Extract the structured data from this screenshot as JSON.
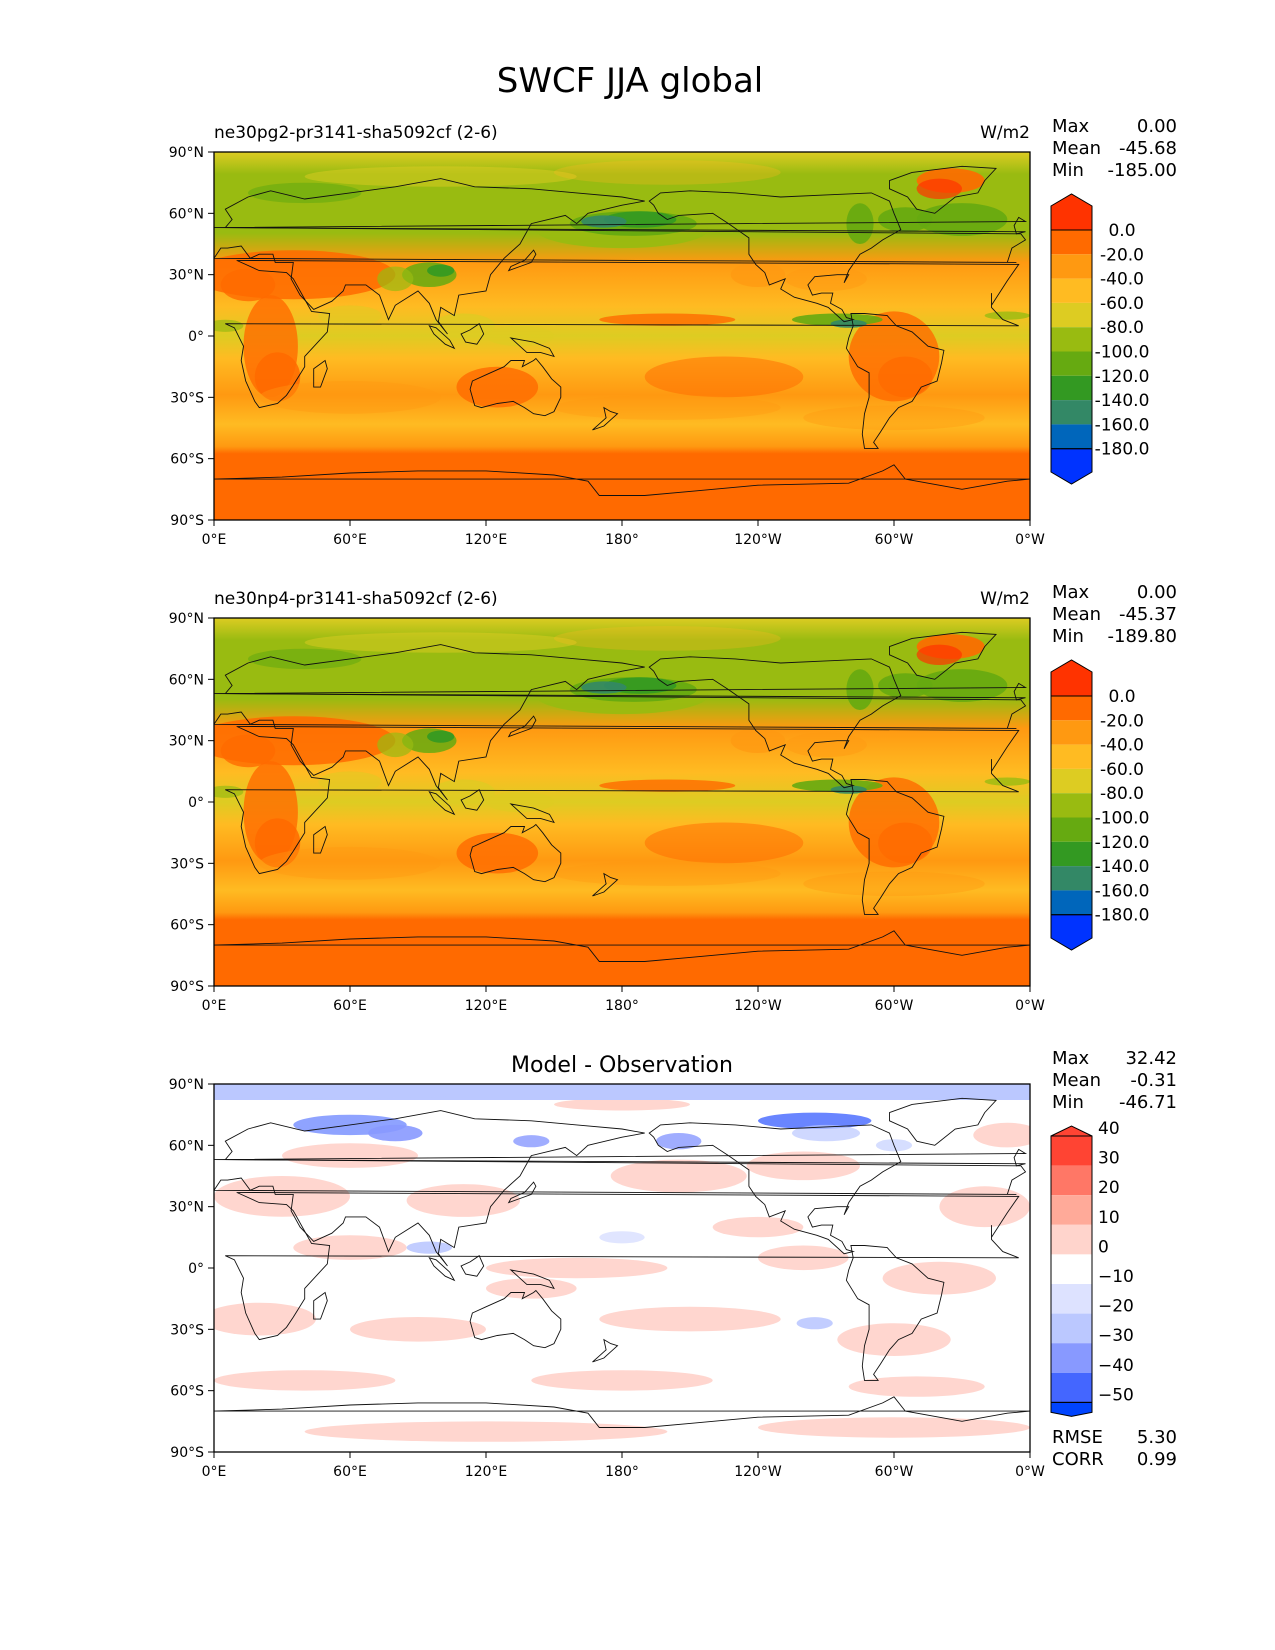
{
  "figure": {
    "title": "SWCF JJA global"
  },
  "axes": {
    "lat_ticks": [
      "90°N",
      "60°N",
      "30°N",
      "0°",
      "30°S",
      "60°S",
      "90°S"
    ],
    "lon_ticks": [
      "0°E",
      "60°E",
      "120°E",
      "180°",
      "120°W",
      "60°W",
      "0°W"
    ]
  },
  "colors": {
    "model_bins": [
      "#0033ff",
      "#0066bb",
      "#338866",
      "#339922",
      "#66aa11",
      "#99bb11",
      "#ddcc22",
      "#ffbb22",
      "#ff9911",
      "#ff6a00",
      "#ff3300"
    ],
    "diff_bins": [
      "#0044ff",
      "#4466ff",
      "#8899ff",
      "#bbc8ff",
      "#dde2ff",
      "#ffffff",
      "#ffd4cc",
      "#ffaa99",
      "#ff7766",
      "#ff4433"
    ]
  },
  "panels": [
    {
      "name": "ne30pg2-pr3141-sha5092cf (2-6)",
      "units": "W/m2",
      "center_title": "",
      "stats": [
        {
          "label": "Max",
          "value": "0.00"
        },
        {
          "label": "Mean",
          "value": "-45.68"
        },
        {
          "label": "Min",
          "value": "-185.00"
        }
      ],
      "colorbar_labels": [
        "0.0",
        "-20.0",
        "-40.0",
        "-60.0",
        "-80.0",
        "-100.0",
        "-120.0",
        "-140.0",
        "-160.0",
        "-180.0"
      ],
      "extra_stats": []
    },
    {
      "name": "ne30np4-pr3141-sha5092cf (2-6)",
      "units": "W/m2",
      "center_title": "",
      "stats": [
        {
          "label": "Max",
          "value": "0.00"
        },
        {
          "label": "Mean",
          "value": "-45.37"
        },
        {
          "label": "Min",
          "value": "-189.80"
        }
      ],
      "colorbar_labels": [
        "0.0",
        "-20.0",
        "-40.0",
        "-60.0",
        "-80.0",
        "-100.0",
        "-120.0",
        "-140.0",
        "-160.0",
        "-180.0"
      ],
      "extra_stats": []
    },
    {
      "name": "",
      "units": "",
      "center_title": "Model - Observation",
      "stats": [
        {
          "label": "Max",
          "value": "32.42"
        },
        {
          "label": "Mean",
          "value": "-0.31"
        },
        {
          "label": "Min",
          "value": "-46.71"
        }
      ],
      "colorbar_labels": [
        "40",
        "30",
        "20",
        "10",
        "0",
        "−10",
        "−20",
        "−30",
        "−40",
        "−50"
      ],
      "extra_stats": [
        {
          "label": "RMSE",
          "value": "5.30"
        },
        {
          "label": "CORR",
          "value": "0.99"
        }
      ]
    }
  ]
}
